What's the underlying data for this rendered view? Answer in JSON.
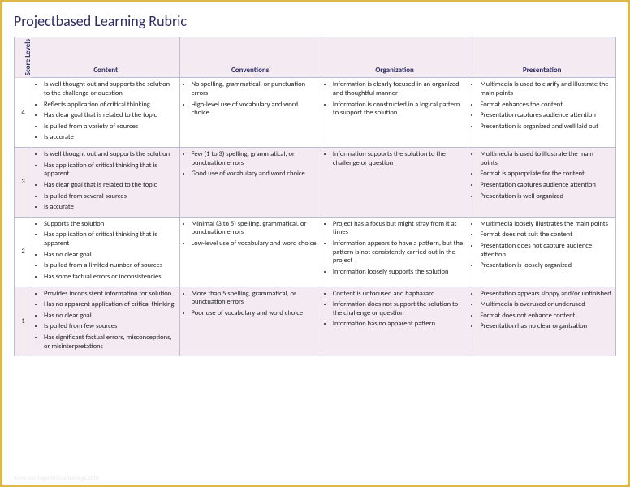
{
  "title": "Projectbased Learning Rubric",
  "header": {
    "score": "Score Levels",
    "columns": [
      "Content",
      "Conventions",
      "Organization",
      "Presentation"
    ]
  },
  "rows": [
    {
      "score": "4",
      "content": [
        "Is well thought out and supports the solution to the challenge or question",
        "Reflects application of critical thinking",
        "Has clear goal that is related to the topic",
        "Is pulled from a variety of sources",
        "Is accurate"
      ],
      "conventions": [
        "No spelling, grammatical, or punctuation errors",
        "High-level use of vocabulary and word choice"
      ],
      "organization": [
        "Information is clearly focused in an organized and thoughtful manner",
        "Information is constructed in a logical pattern to support the solution"
      ],
      "presentation": [
        "Multimedia is used to clarify and illustrate the main points",
        "Format enhances the content",
        "Presentation captures audience attention",
        "Presentation is organized and well laid out"
      ]
    },
    {
      "score": "3",
      "content": [
        "Is well thought out and supports the solution",
        "Has application of critical thinking that is apparent",
        "Has clear goal that is related to the topic",
        "Is pulled from several sources",
        "Is accurate"
      ],
      "conventions": [
        "Few (1 to 3) spelling, grammatical, or punctuation errors",
        "Good use of vocabulary and word choice"
      ],
      "organization": [
        "Information supports the solution to the challenge or question"
      ],
      "presentation": [
        "Multimedia is used to illustrate the main points",
        "Format is appropriate for the content",
        "Presentation captures audience attention",
        "Presentation is well organized"
      ]
    },
    {
      "score": "2",
      "content": [
        "Supports the solution",
        "Has application of critical thinking that is apparent",
        "Has no clear goal",
        "Is pulled from a limited number of sources",
        "Has some factual errors or inconsistencies"
      ],
      "conventions": [
        "Minimal (3 to 5) spelling, grammatical, or punctuation errors",
        "Low-level use of vocabulary and word choice"
      ],
      "organization": [
        "Project has a focus but might stray from it at times",
        "Information appears to have a pattern, but the pattern is not consistently carried out in the project",
        "Information loosely supports the solution"
      ],
      "presentation": [
        "Multimedia loosely illustrates the main points",
        "Format does not suit the content",
        "Presentation does not capture audience attention",
        "Presentation is loosely organized"
      ]
    },
    {
      "score": "1",
      "content": [
        "Provides inconsistent information for solution",
        "Has no apparent application of critical thinking",
        "Has no clear goal",
        "Is pulled from few sources",
        "Has significant factual errors, misconceptions, or misinterpretations"
      ],
      "conventions": [
        "More than 5 spelling, grammatical, or punctuation errors",
        "Poor use of vocabulary and word choice"
      ],
      "organization": [
        "Content is unfocused and haphazard",
        "Information does not support the solution to the challenge or question",
        "Information has no apparent pattern"
      ],
      "presentation": [
        "Presentation appears sloppy and/or unfinished",
        "Multimedia is overused or underused",
        "Format does not enhance content",
        "Presentation has no clear organization"
      ]
    }
  ],
  "footer": "www.heritagechristiancollege.com"
}
